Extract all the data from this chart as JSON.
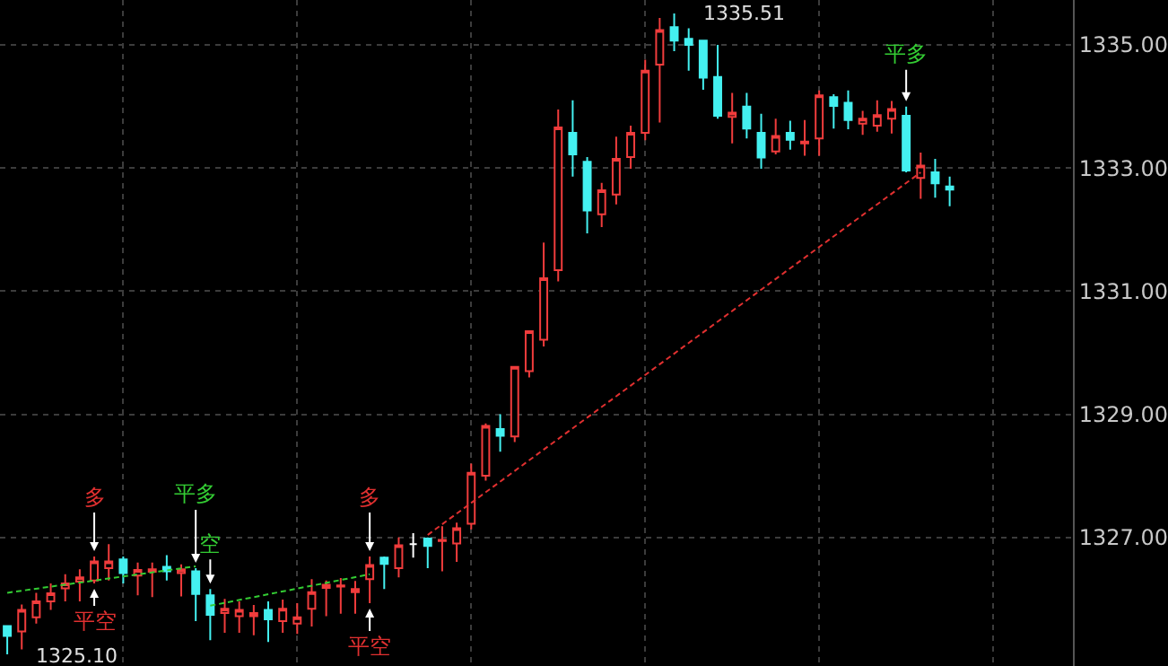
{
  "chart_data": {
    "type": "candlestick",
    "categories": [
      null,
      null,
      null,
      null,
      null,
      null,
      null,
      null,
      null,
      null,
      null,
      null,
      null,
      null,
      null,
      null,
      null,
      null,
      null,
      null,
      null,
      null,
      null,
      null,
      null,
      null,
      null,
      null,
      null,
      null,
      null,
      null,
      null,
      null,
      null,
      null,
      null,
      null,
      null,
      null,
      null,
      null,
      null,
      null,
      null,
      null,
      null,
      null,
      null,
      null,
      null,
      null,
      null,
      null,
      null,
      null,
      null,
      null,
      null,
      null,
      null,
      null,
      null,
      null,
      null,
      null,
      null,
      null,
      null,
      null,
      null,
      null,
      null,
      null
    ],
    "ohlc": [
      [
        1325.56,
        1325.56,
        1325.1,
        1325.4
      ],
      [
        1325.47,
        1325.91,
        1325.18,
        1325.82
      ],
      [
        1325.7,
        1326.1,
        1325.6,
        1325.96
      ],
      [
        1325.96,
        1326.25,
        1325.82,
        1326.09
      ],
      [
        1326.17,
        1326.4,
        1325.96,
        1326.25
      ],
      [
        1326.28,
        1326.48,
        1325.96,
        1326.35
      ],
      [
        1326.3,
        1326.69,
        1326.25,
        1326.61
      ],
      [
        1326.5,
        1326.89,
        1326.3,
        1326.61
      ],
      [
        1326.64,
        1326.69,
        1326.25,
        1326.42
      ],
      [
        1326.38,
        1326.59,
        1326.06,
        1326.47
      ],
      [
        1326.44,
        1326.59,
        1326.03,
        1326.48
      ],
      [
        1326.52,
        1326.71,
        1326.3,
        1326.45
      ],
      [
        1326.42,
        1326.56,
        1326.04,
        1326.48
      ],
      [
        1326.45,
        1326.5,
        1325.64,
        1326.08
      ],
      [
        1326.06,
        1326.16,
        1325.33,
        1325.74
      ],
      [
        1325.77,
        1326.0,
        1325.45,
        1325.84
      ],
      [
        1325.72,
        1325.96,
        1325.45,
        1325.82
      ],
      [
        1325.72,
        1325.9,
        1325.41,
        1325.77
      ],
      [
        1325.82,
        1325.96,
        1325.3,
        1325.67
      ],
      [
        1325.64,
        1325.99,
        1325.45,
        1325.84
      ],
      [
        1325.6,
        1325.93,
        1325.43,
        1325.7
      ],
      [
        1325.84,
        1326.32,
        1325.55,
        1326.11
      ],
      [
        1326.18,
        1326.3,
        1325.72,
        1326.23
      ],
      [
        1326.2,
        1326.34,
        1325.76,
        1326.22
      ],
      [
        1326.11,
        1326.29,
        1325.76,
        1326.16
      ],
      [
        1326.32,
        1326.69,
        1325.93,
        1326.55
      ],
      [
        1326.67,
        1326.69,
        1326.16,
        1326.57
      ],
      [
        1326.5,
        1327.0,
        1326.35,
        1326.87
      ],
      [
        1326.89,
        1327.07,
        1326.67,
        1326.89
      ],
      [
        1326.98,
        1327.0,
        1326.5,
        1326.86
      ],
      [
        1326.94,
        1327.18,
        1326.45,
        1326.96
      ],
      [
        1326.9,
        1327.24,
        1326.6,
        1327.15
      ],
      [
        1327.22,
        1328.2,
        1327.13,
        1328.05
      ],
      [
        1328.0,
        1328.85,
        1327.92,
        1328.81
      ],
      [
        1328.76,
        1329.0,
        1328.39,
        1328.65
      ],
      [
        1328.64,
        1329.77,
        1328.55,
        1329.77
      ],
      [
        1329.7,
        1330.35,
        1329.6,
        1330.35
      ],
      [
        1330.21,
        1331.79,
        1330.1,
        1331.21
      ],
      [
        1331.34,
        1333.95,
        1331.16,
        1333.66
      ],
      [
        1333.57,
        1334.1,
        1332.86,
        1333.22
      ],
      [
        1333.1,
        1333.18,
        1331.94,
        1332.31
      ],
      [
        1332.25,
        1332.76,
        1332.04,
        1332.64
      ],
      [
        1332.57,
        1333.51,
        1332.41,
        1333.15
      ],
      [
        1333.18,
        1333.69,
        1332.99,
        1333.57
      ],
      [
        1333.57,
        1334.76,
        1333.45,
        1334.58
      ],
      [
        1334.68,
        1335.44,
        1333.74,
        1335.24
      ],
      [
        1335.29,
        1335.51,
        1334.9,
        1335.07
      ],
      [
        1335.1,
        1335.27,
        1334.58,
        1335.0
      ],
      [
        1335.07,
        1335.07,
        1334.27,
        1334.47
      ],
      [
        1334.48,
        1335.0,
        1333.8,
        1333.85
      ],
      [
        1333.83,
        1334.22,
        1333.4,
        1333.9
      ],
      [
        1334.0,
        1334.22,
        1333.48,
        1333.64
      ],
      [
        1333.57,
        1333.88,
        1332.99,
        1333.17
      ],
      [
        1333.27,
        1333.8,
        1333.22,
        1333.52
      ],
      [
        1333.57,
        1333.77,
        1333.3,
        1333.46
      ],
      [
        1333.4,
        1333.78,
        1333.2,
        1333.43
      ],
      [
        1333.48,
        1334.26,
        1333.2,
        1334.18
      ],
      [
        1334.15,
        1334.2,
        1333.64,
        1334.01
      ],
      [
        1334.06,
        1334.26,
        1333.63,
        1333.78
      ],
      [
        1333.72,
        1333.93,
        1333.54,
        1333.8
      ],
      [
        1333.69,
        1334.1,
        1333.59,
        1333.86
      ],
      [
        1333.8,
        1334.09,
        1333.56,
        1333.96
      ],
      [
        1333.85,
        1334.0,
        1332.93,
        1332.96
      ],
      [
        1332.84,
        1333.25,
        1332.5,
        1333.04
      ],
      [
        1332.93,
        1333.15,
        1332.52,
        1332.75
      ],
      [
        1332.7,
        1332.86,
        1332.38,
        1332.65
      ],
      null,
      null,
      null,
      null,
      null,
      null,
      null,
      null
    ],
    "colors": [
      "#44f0f0",
      "#f03c3c",
      "#f03c3c",
      "#f03c3c",
      "#f03c3c",
      "#f03c3c",
      "#f03c3c",
      "#f03c3c",
      "#44f0f0",
      "#f03c3c",
      "#f03c3c",
      "#44f0f0",
      "#f03c3c",
      "#44f0f0",
      "#44f0f0",
      "#f03c3c",
      "#f03c3c",
      "#f03c3c",
      "#44f0f0",
      "#f03c3c",
      "#f03c3c",
      "#f03c3c",
      "#f03c3c",
      "#f03c3c",
      "#f03c3c",
      "#f03c3c",
      "#44f0f0",
      "#f03c3c",
      "#ffffff",
      "#44f0f0",
      "#f03c3c",
      "#f03c3c",
      "#f03c3c",
      "#f03c3c",
      "#44f0f0",
      "#f03c3c",
      "#f03c3c",
      "#f03c3c",
      "#f03c3c",
      "#44f0f0",
      "#44f0f0",
      "#f03c3c",
      "#f03c3c",
      "#f03c3c",
      "#f03c3c",
      "#f03c3c",
      "#44f0f0",
      "#44f0f0",
      "#44f0f0",
      "#44f0f0",
      "#f03c3c",
      "#44f0f0",
      "#44f0f0",
      "#f03c3c",
      "#44f0f0",
      "#f03c3c",
      "#f03c3c",
      "#44f0f0",
      "#44f0f0",
      "#f03c3c",
      "#f03c3c",
      "#f03c3c",
      "#44f0f0",
      "#f03c3c",
      "#44f0f0",
      "#44f0f0",
      null,
      null,
      null,
      null,
      null,
      null,
      null,
      null
    ],
    "series": [
      {
        "type": "line",
        "color": "#33cc33",
        "values": [
          1326.1,
          null,
          null,
          null,
          null,
          null,
          null,
          null,
          null,
          null,
          null,
          null,
          null,
          1326.53,
          null,
          null,
          null,
          null,
          null,
          null,
          null,
          null,
          null,
          null,
          null,
          null,
          null,
          null,
          null,
          null,
          null,
          null,
          null,
          null,
          null,
          null,
          null,
          null,
          null,
          null,
          null,
          null,
          null,
          null,
          null,
          null,
          null,
          null,
          null,
          null,
          null,
          null,
          null,
          null,
          null,
          null,
          null,
          null,
          null,
          null,
          null,
          null,
          null,
          null,
          null,
          null,
          null,
          null,
          null,
          null,
          null,
          null,
          null,
          null
        ]
      },
      {
        "type": "line",
        "color": "#33cc33",
        "values": [
          null,
          null,
          null,
          null,
          null,
          null,
          null,
          null,
          null,
          null,
          null,
          null,
          null,
          null,
          1325.89,
          null,
          null,
          null,
          null,
          null,
          null,
          null,
          null,
          null,
          null,
          1326.4,
          null,
          null,
          null,
          null,
          null,
          null,
          null,
          null,
          null,
          null,
          null,
          null,
          null,
          null,
          null,
          null,
          null,
          null,
          null,
          null,
          null,
          null,
          null,
          null,
          null,
          null,
          null,
          null,
          null,
          null,
          null,
          null,
          null,
          null,
          null,
          null,
          null,
          null,
          null,
          null,
          null,
          null,
          null,
          null,
          null,
          null,
          null,
          null
        ]
      },
      {
        "type": "line",
        "color": "#e03030",
        "values": [
          null,
          null,
          null,
          null,
          null,
          null,
          null,
          null,
          null,
          null,
          null,
          null,
          null,
          null,
          null,
          null,
          null,
          null,
          null,
          null,
          null,
          null,
          null,
          null,
          null,
          null,
          null,
          null,
          null,
          1327.04,
          null,
          null,
          null,
          null,
          null,
          null,
          null,
          null,
          null,
          null,
          null,
          null,
          null,
          null,
          null,
          null,
          null,
          null,
          null,
          null,
          null,
          null,
          null,
          null,
          null,
          null,
          null,
          null,
          null,
          null,
          null,
          null,
          null,
          1332.93,
          null,
          null,
          null,
          null,
          null,
          null,
          null,
          null,
          null,
          null
        ]
      }
    ],
    "line_style": "dashed",
    "ylim": [
      1324.91,
      1335.73
    ],
    "yticks": [
      {
        "value": 1327,
        "label": "1327.00"
      },
      {
        "value": 1329,
        "label": "1329.00"
      },
      {
        "value": 1331,
        "label": "1331.00"
      },
      {
        "value": 1333,
        "label": "1333.00"
      },
      {
        "value": 1335,
        "label": "1335.00"
      }
    ],
    "tick_labels": "y",
    "grid": true,
    "annotations": [
      "多",
      "平空",
      "平多",
      "空",
      "多",
      "平空",
      "平多",
      "1335.51",
      "1325.10"
    ]
  }
}
